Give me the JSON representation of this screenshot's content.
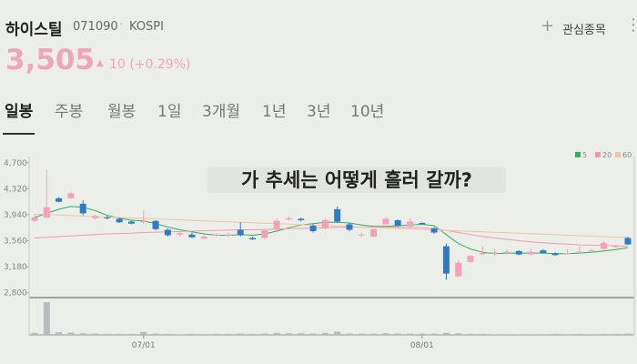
{
  "header": {
    "name": "하이스틸",
    "code": "071090",
    "market": "KOSPI",
    "watch": "관심종목",
    "price": "3,505",
    "change": "10 (+0.29%)"
  },
  "tabs": [
    "일봉",
    "주봉",
    "월봉",
    "1일",
    "3개월",
    "1년",
    "3년",
    "10년"
  ],
  "chart_data": {
    "type": "candlestick",
    "annotation": "가 추세는 어떻게 흘러 갈까?",
    "categories": [
      null,
      null,
      null,
      null,
      null,
      null,
      null,
      null,
      null,
      "07/01",
      null,
      null,
      null,
      null,
      null,
      null,
      null,
      null,
      null,
      null,
      null,
      null,
      null,
      null,
      null,
      null,
      null,
      null,
      null,
      null,
      null,
      null,
      "08/01",
      null,
      null,
      null,
      null,
      null,
      null,
      null,
      null,
      null,
      null,
      null,
      null,
      null,
      null,
      null,
      null,
      null
    ],
    "open": [
      3850,
      3900,
      4180,
      4180,
      4100,
      3890,
      3900,
      3880,
      3840,
      3830,
      3850,
      3720,
      3650,
      3650,
      3590,
      3640,
      3640,
      3720,
      3600,
      3600,
      3720,
      3870,
      3880,
      3780,
      3740,
      4020,
      3800,
      3640,
      3620,
      3800,
      3860,
      3770,
      3820,
      3740,
      3480,
      3040,
      3250,
      3360,
      3370,
      3380,
      3410,
      3360,
      3420,
      3380,
      3370,
      3380,
      3420,
      3440,
      3470,
      3600
    ],
    "high": [
      3950,
      4600,
      4200,
      4270,
      4150,
      3940,
      3930,
      3890,
      3860,
      4000,
      3860,
      3740,
      3690,
      3680,
      3640,
      3670,
      3680,
      3830,
      3620,
      3730,
      3890,
      3920,
      3900,
      3800,
      3890,
      4060,
      3830,
      3680,
      3740,
      3900,
      3870,
      3880,
      3830,
      3760,
      3520,
      3280,
      3350,
      3480,
      3440,
      3430,
      3420,
      3440,
      3440,
      3390,
      3440,
      3480,
      3440,
      3560,
      3500,
      3620
    ],
    "low": [
      3840,
      3880,
      4120,
      4170,
      3930,
      3870,
      3870,
      3820,
      3800,
      3800,
      3710,
      3620,
      3620,
      3600,
      3580,
      3620,
      3610,
      3620,
      3570,
      3590,
      3710,
      3850,
      3840,
      3680,
      3720,
      3820,
      3700,
      3610,
      3610,
      3790,
      3760,
      3740,
      3790,
      3660,
      2990,
      3030,
      3240,
      3350,
      3340,
      3360,
      3350,
      3350,
      3370,
      3340,
      3360,
      3370,
      3410,
      3430,
      3460,
      3500
    ],
    "close": [
      3900,
      4050,
      4130,
      4250,
      3960,
      3920,
      3890,
      3830,
      3810,
      3850,
      3730,
      3640,
      3670,
      3610,
      3620,
      3650,
      3650,
      3640,
      3580,
      3710,
      3850,
      3890,
      3860,
      3700,
      3860,
      3840,
      3720,
      3650,
      3730,
      3880,
      3780,
      3840,
      3800,
      3680,
      3080,
      3240,
      3340,
      3380,
      3390,
      3400,
      3360,
      3400,
      3380,
      3350,
      3380,
      3400,
      3420,
      3530,
      3480,
      3505
    ],
    "volume": [
      60,
      1000,
      80,
      70,
      50,
      40,
      30,
      30,
      30,
      90,
      40,
      30,
      20,
      30,
      25,
      30,
      30,
      40,
      30,
      40,
      60,
      50,
      50,
      40,
      60,
      100,
      40,
      40,
      40,
      50,
      40,
      40,
      40,
      40,
      60,
      50,
      30,
      30,
      20,
      20,
      20,
      20,
      20,
      30,
      20,
      30,
      20,
      30,
      30,
      40
    ],
    "volume_lim": [
      0,
      1000
    ],
    "up_color": "#f4a1b9",
    "down_color": "#2f7cc6",
    "volume_color": "#b9bcbf",
    "series": [
      {
        "name": "5",
        "color": "#2fb35b",
        "values": [
          3900,
          3960,
          4020,
          4060,
          4050,
          4000,
          3930,
          3890,
          3860,
          3850,
          3810,
          3760,
          3720,
          3690,
          3660,
          3640,
          3640,
          3650,
          3640,
          3660,
          3700,
          3750,
          3790,
          3810,
          3830,
          3830,
          3820,
          3790,
          3770,
          3770,
          3780,
          3790,
          3800,
          3780,
          3650,
          3520,
          3440,
          3390,
          3370,
          3380,
          3380,
          3380,
          3380,
          3370,
          3370,
          3380,
          3390,
          3410,
          3430,
          3460
        ]
      },
      {
        "name": "20",
        "color": "#f09bb2",
        "values": [
          3600,
          3610,
          3620,
          3630,
          3640,
          3650,
          3660,
          3665,
          3670,
          3680,
          3685,
          3690,
          3695,
          3700,
          3705,
          3710,
          3715,
          3720,
          3720,
          3725,
          3730,
          3735,
          3740,
          3745,
          3750,
          3755,
          3760,
          3760,
          3760,
          3760,
          3760,
          3755,
          3750,
          3740,
          3710,
          3680,
          3650,
          3620,
          3600,
          3580,
          3560,
          3545,
          3530,
          3520,
          3510,
          3500,
          3495,
          3490,
          3485,
          3480
        ]
      },
      {
        "name": "60",
        "color": "#f2c3a0",
        "values": [
          3950,
          3942,
          3935,
          3928,
          3921,
          3914,
          3907,
          3900,
          3893,
          3886,
          3879,
          3872,
          3865,
          3858,
          3851,
          3844,
          3837,
          3830,
          3823,
          3816,
          3809,
          3802,
          3795,
          3788,
          3781,
          3774,
          3767,
          3760,
          3753,
          3746,
          3739,
          3732,
          3725,
          3718,
          3711,
          3704,
          3697,
          3690,
          3683,
          3676,
          3669,
          3662,
          3655,
          3648,
          3641,
          3634,
          3627,
          3620,
          3613,
          3606
        ]
      }
    ],
    "ylim": [
      2730,
      4790
    ],
    "yticks": [
      {
        "value": 4700,
        "label": "4,700"
      },
      {
        "value": 4320,
        "label": "4,320"
      },
      {
        "value": 3940,
        "label": "3,940"
      },
      {
        "value": 3560,
        "label": "3,560"
      },
      {
        "value": 3180,
        "label": "3,180"
      },
      {
        "value": 2800,
        "label": "2,800"
      }
    ],
    "legend": "top-right"
  }
}
